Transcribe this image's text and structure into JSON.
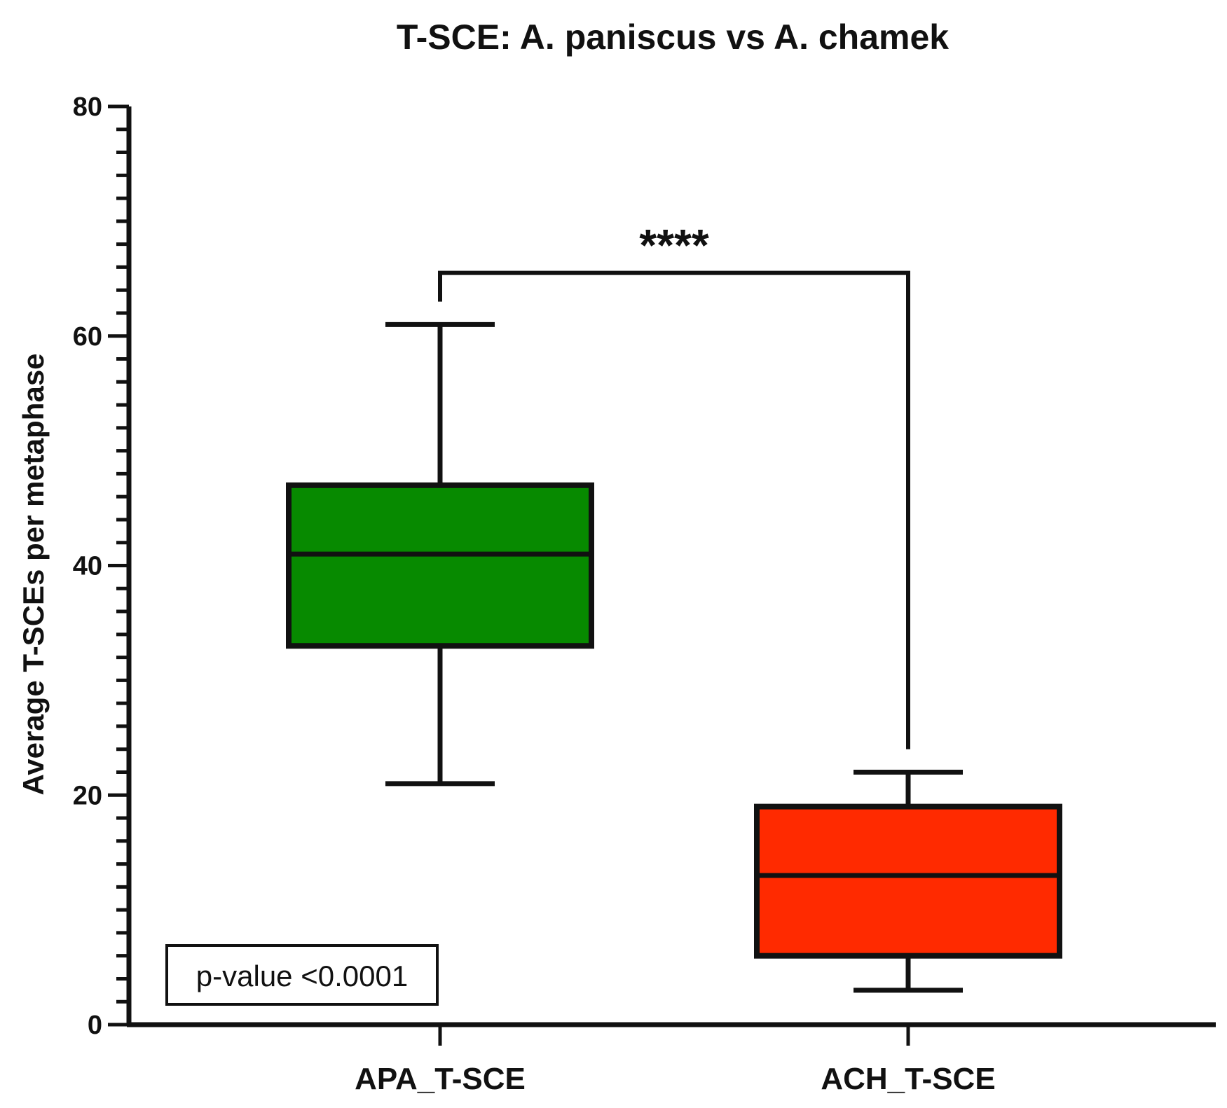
{
  "chart_data": {
    "type": "box",
    "title": "T-SCE: A. paniscus vs A. chamek",
    "ylabel": "Average T-SCEs per metaphase",
    "xlabel": "",
    "ylim": [
      0,
      80
    ],
    "yticks": [
      0,
      20,
      40,
      60,
      80
    ],
    "y_minor_step": 2,
    "categories": [
      "APA_T-SCE",
      "ACH_T-SCE"
    ],
    "boxes": [
      {
        "category": "APA_T-SCE",
        "min": 21,
        "q1": 33,
        "median": 41,
        "q3": 47,
        "max": 61,
        "color": "#078A00"
      },
      {
        "category": "ACH_T-SCE",
        "min": 3,
        "q1": 6,
        "median": 13,
        "q3": 19,
        "max": 22,
        "color": "#FF2A00"
      }
    ],
    "significance": {
      "label": "****",
      "bracket_y": 65.5,
      "left_end_y": 63,
      "right_end_y": 24
    },
    "annotation": "p-value <0.0001",
    "grid": false
  }
}
